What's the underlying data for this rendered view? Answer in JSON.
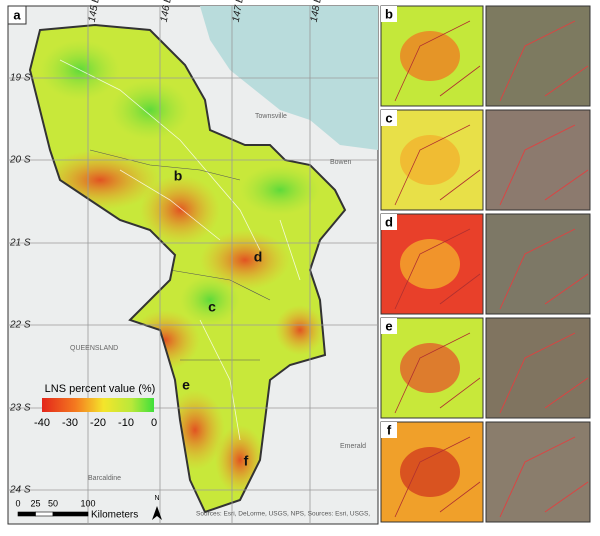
{
  "panel_label": "a",
  "latitude_labels": [
    "19 S",
    "20 S",
    "21 S",
    "22 S",
    "23 S",
    "24 S"
  ],
  "longitude_labels": [
    "145 E",
    "146 E",
    "147 E",
    "148 E"
  ],
  "place_labels": [
    "Townsville",
    "Bowen",
    "QUEENSLAND",
    "Emerald",
    "Barcaldine"
  ],
  "region_labels": [
    "b",
    "c",
    "d",
    "e",
    "f"
  ],
  "legend": {
    "title": "LNS percent value (%)",
    "ticks": [
      -40,
      -30,
      -20,
      -10,
      0
    ]
  },
  "scale_bar": {
    "ticks": [
      0,
      25,
      50,
      100
    ],
    "unit": "Kilometers"
  },
  "north_label": "N",
  "attribution": "Sources: Esri, DeLorme, USGS, NPS, Sources: Esri, USGS,",
  "insets": [
    {
      "label": "b"
    },
    {
      "label": "c"
    },
    {
      "label": "d"
    },
    {
      "label": "e"
    },
    {
      "label": "f"
    }
  ]
}
